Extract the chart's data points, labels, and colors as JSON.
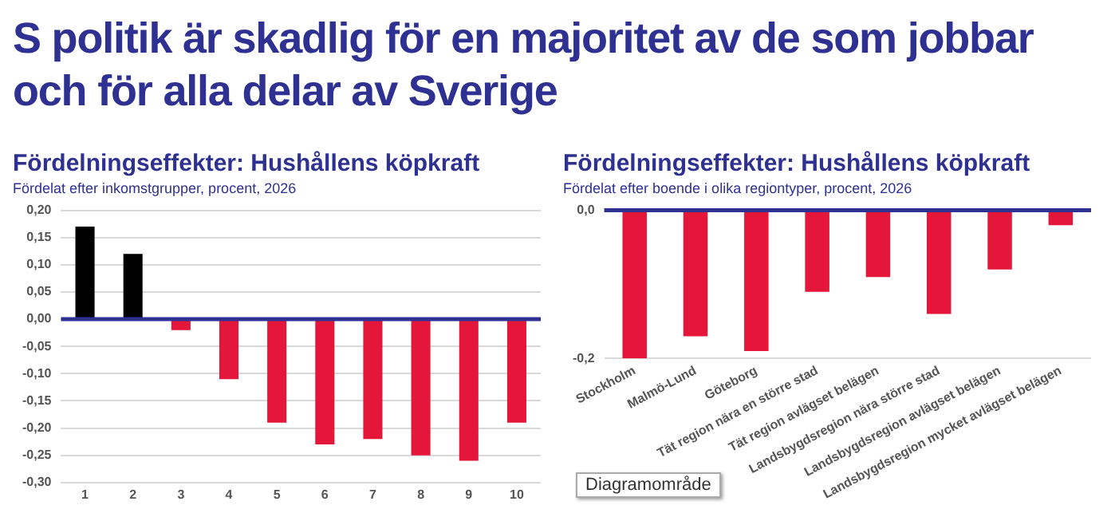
{
  "chart_data": [
    {
      "type": "other",
      "title": "S politik är skadlig för en majoritet av de som jobbar och för alla delar av Sverige"
    },
    {
      "type": "bar",
      "title": "Fördelningseffekter: Hushållens köpkraft",
      "subtitle": "Fördelat efter inkomstgrupper, procent, 2026",
      "categories": [
        "1",
        "2",
        "3",
        "4",
        "5",
        "6",
        "7",
        "8",
        "9",
        "10"
      ],
      "values": [
        0.17,
        0.12,
        -0.02,
        -0.11,
        -0.19,
        -0.23,
        -0.22,
        -0.25,
        -0.26,
        -0.19
      ],
      "colors": [
        "#000000",
        "#000000",
        "#e4173a",
        "#e4173a",
        "#e4173a",
        "#e4173a",
        "#e4173a",
        "#e4173a",
        "#e4173a",
        "#e4173a"
      ],
      "ylim": [
        -0.3,
        0.2
      ],
      "yticks": [
        {
          "value": 0.2,
          "label": "0,20"
        },
        {
          "value": 0.15,
          "label": "0,15"
        },
        {
          "value": 0.1,
          "label": "0,10"
        },
        {
          "value": 0.05,
          "label": "0,05"
        },
        {
          "value": 0,
          "label": "0,00"
        },
        {
          "value": -0.05,
          "label": "-0,05"
        },
        {
          "value": -0.1,
          "label": "-0,10"
        },
        {
          "value": -0.15,
          "label": "-0,15"
        },
        {
          "value": -0.2,
          "label": "-0,20"
        },
        {
          "value": -0.25,
          "label": "-0,25"
        },
        {
          "value": -0.3,
          "label": "-0,30"
        }
      ],
      "grid": "y",
      "legend": false,
      "ref_lines": [
        {
          "axis": "y",
          "value": 0,
          "color": "#2e3192"
        }
      ]
    },
    {
      "type": "bar",
      "title": "Fördelningseffekter: Hushållens köpkraft",
      "subtitle": "Fördelat efter boende i olika regiontyper, procent, 2026",
      "categories": [
        "Stockholm",
        "Malmö-Lund",
        "Göteborg",
        "Tät region nära en större stad",
        "Tät region avlägset belägen",
        "Landsbygdsregion nära större stad",
        "Landsbygdsregion avlägset belägen",
        "Landsbygdsregion mycket avlägset belägen"
      ],
      "values": [
        -0.2,
        -0.17,
        -0.19,
        -0.11,
        -0.09,
        -0.14,
        -0.08,
        -0.02
      ],
      "color": "#e4173a",
      "ylim": [
        -0.2,
        0
      ],
      "yticks": [
        {
          "value": 0,
          "label": "0,0"
        },
        {
          "value": -0.2,
          "label": "-0,2"
        }
      ],
      "grid": "y",
      "legend": false,
      "ref_lines": [
        {
          "axis": "y",
          "value": 0,
          "color": "#2e3192"
        }
      ],
      "annotations": [
        "Diagramområde"
      ]
    }
  ]
}
